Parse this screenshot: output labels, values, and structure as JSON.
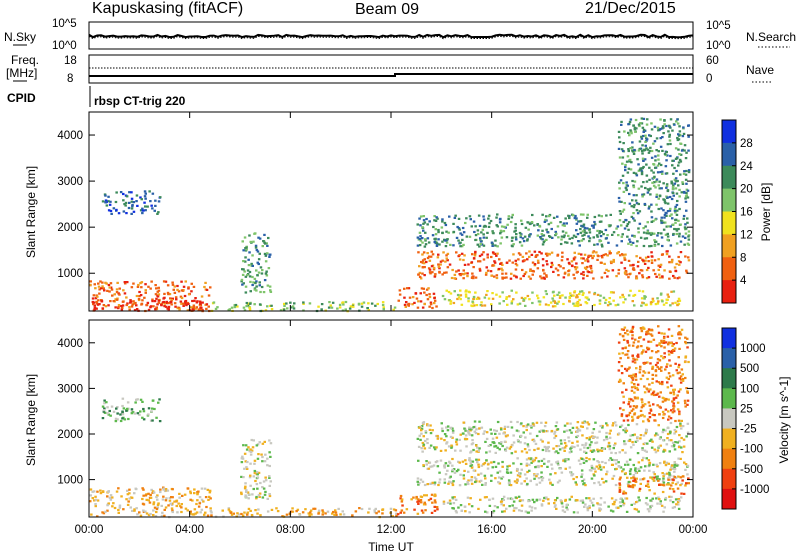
{
  "header": {
    "station": "Kapuskasing (fitACF)",
    "beam": "Beam 09",
    "date": "21/Dec/2015"
  },
  "noise_panel": {
    "left_label": "N.Sky",
    "right_label": "N.Search",
    "left_ticks": [
      "10^5",
      "10^0"
    ],
    "right_ticks": [
      "10^5",
      "10^0"
    ]
  },
  "freq_panel": {
    "left_label_1": "Freq.",
    "left_label_2": "[MHz]",
    "right_label": "Nave",
    "left_ticks": [
      "18",
      "8"
    ],
    "right_ticks": [
      "60",
      "0"
    ]
  },
  "cpid": {
    "label": "CPID",
    "mode": "rbsp CT-trig 220"
  },
  "colors": {
    "power": [
      "#1030e0",
      "#2a60a8",
      "#3c8a5a",
      "#7ec46a",
      "#f0e21e",
      "#f0a020",
      "#f06010",
      "#e82010"
    ],
    "velocity": [
      "#1030e0",
      "#2a60a8",
      "#2d7a4a",
      "#5cb84c",
      "#c8c8c0",
      "#f0b020",
      "#f08010",
      "#f04010",
      "#e01010"
    ]
  },
  "chart_data": [
    {
      "type": "heatmap",
      "title": "Power",
      "xlabel": "",
      "ylabel": "Slant Range [km]",
      "x_ticks": [
        "00:00",
        "04:00",
        "08:00",
        "12:00",
        "16:00",
        "20:00",
        "00:00"
      ],
      "xlim_hours": [
        0,
        24
      ],
      "y_ticks": [
        1000,
        2000,
        3000,
        4000
      ],
      "ylim_km": [
        180,
        4500
      ],
      "colorbar": {
        "label": "Power [dB]",
        "ticks": [
          "28",
          "24",
          "20",
          "16",
          "12",
          "8",
          "4"
        ],
        "range": [
          0,
          30
        ]
      },
      "scatter_regions": [
        {
          "t": [
            0.0,
            4.8
          ],
          "r": [
            200,
            850
          ],
          "level": 6
        },
        {
          "t": [
            0.0,
            4.6
          ],
          "r": [
            200,
            420
          ],
          "level": 7
        },
        {
          "t": [
            0.5,
            2.8
          ],
          "r": [
            2300,
            2800
          ],
          "level": 1
        },
        {
          "t": [
            4.8,
            12.2
          ],
          "r": [
            200,
            400
          ],
          "level": 3
        },
        {
          "t": [
            6.0,
            7.2
          ],
          "r": [
            600,
            1900
          ],
          "level": 2
        },
        {
          "t": [
            12.2,
            13.8
          ],
          "r": [
            250,
            700
          ],
          "level": 6
        },
        {
          "t": [
            13.0,
            23.8
          ],
          "r": [
            900,
            1500
          ],
          "level": 6
        },
        {
          "t": [
            13.0,
            23.8
          ],
          "r": [
            1600,
            2300
          ],
          "level": 2
        },
        {
          "t": [
            14.0,
            23.5
          ],
          "r": [
            300,
            650
          ],
          "level": 4
        },
        {
          "t": [
            21.0,
            23.8
          ],
          "r": [
            2300,
            4400
          ],
          "level": 2
        }
      ]
    },
    {
      "type": "heatmap",
      "title": "Velocity",
      "xlabel": "Time UT",
      "ylabel": "Slant Range [km]",
      "x_ticks": [
        "00:00",
        "04:00",
        "08:00",
        "12:00",
        "16:00",
        "20:00",
        "00:00"
      ],
      "xlim_hours": [
        0,
        24
      ],
      "y_ticks": [
        1000,
        2000,
        3000,
        4000
      ],
      "ylim_km": [
        180,
        4500
      ],
      "colorbar": {
        "label": "Velocity [m s^-1]",
        "ticks": [
          "1000",
          "500",
          "100",
          "25",
          "-25",
          "-100",
          "-500",
          "-1000"
        ],
        "range": [
          -1200,
          1200
        ]
      },
      "scatter_regions": [
        {
          "t": [
            0.0,
            4.8
          ],
          "r": [
            200,
            850
          ],
          "level": 5
        },
        {
          "t": [
            0.5,
            2.8
          ],
          "r": [
            2300,
            2800
          ],
          "level": 3
        },
        {
          "t": [
            4.8,
            12.2
          ],
          "r": [
            200,
            400
          ],
          "level": 5
        },
        {
          "t": [
            6.0,
            7.2
          ],
          "r": [
            600,
            1900
          ],
          "level": 4
        },
        {
          "t": [
            12.2,
            13.8
          ],
          "r": [
            250,
            700
          ],
          "level": 6
        },
        {
          "t": [
            13.0,
            23.8
          ],
          "r": [
            900,
            1500
          ],
          "level": 4
        },
        {
          "t": [
            13.0,
            23.8
          ],
          "r": [
            1600,
            2300
          ],
          "level": 4
        },
        {
          "t": [
            14.0,
            23.5
          ],
          "r": [
            300,
            650
          ],
          "level": 4
        },
        {
          "t": [
            21.0,
            23.8
          ],
          "r": [
            700,
            1100
          ],
          "level": 6
        },
        {
          "t": [
            21.0,
            23.8
          ],
          "r": [
            2300,
            4400
          ],
          "level": 6
        }
      ]
    }
  ]
}
